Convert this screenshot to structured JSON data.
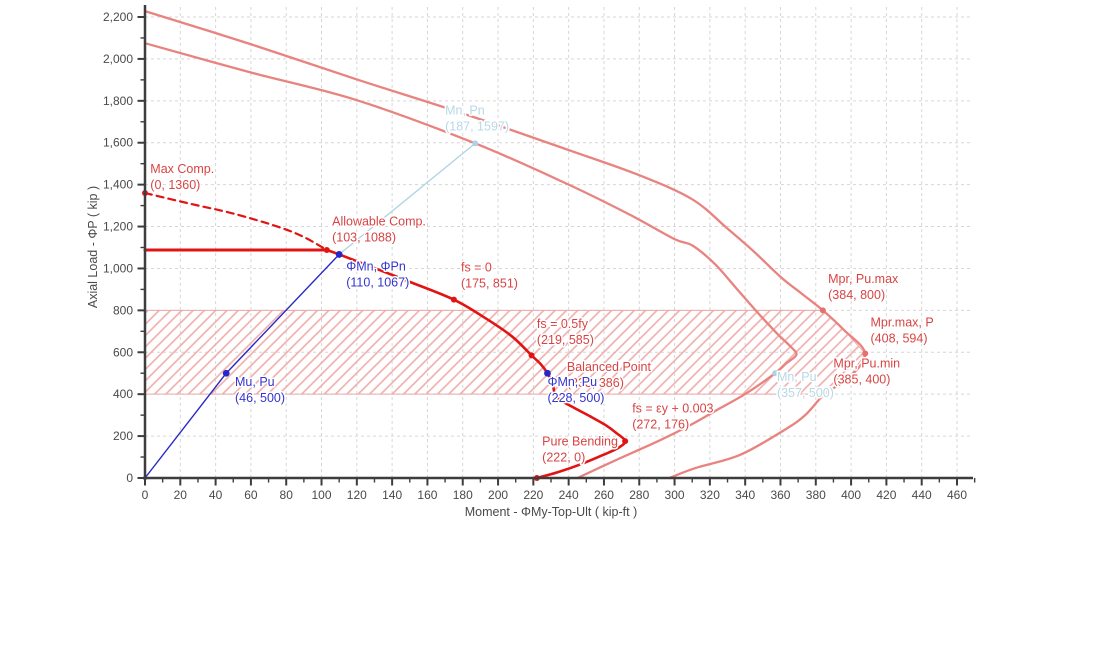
{
  "chart_data": {
    "type": "line",
    "title": "",
    "xlabel": "Moment - ΦMy-Top-Ult ( kip-ft )",
    "ylabel": "Axial Load - ΦP ( kip )",
    "xlim": [
      0,
      470
    ],
    "ylim": [
      0,
      2260
    ],
    "x_major_ticks": [
      0,
      20,
      40,
      60,
      80,
      100,
      120,
      140,
      160,
      180,
      200,
      220,
      240,
      260,
      280,
      300,
      320,
      340,
      360,
      380,
      400,
      420,
      440,
      460
    ],
    "x_minor_step": 10,
    "x_minor_max": 470,
    "y_major_ticks": [
      0,
      200,
      400,
      600,
      800,
      1000,
      1200,
      1400,
      1600,
      1800,
      2000,
      2200
    ],
    "y_minor_step": 100,
    "grid": true,
    "legend": null,
    "hatch_band": {
      "y_min": 400,
      "y_max": 800,
      "x_min": 0,
      "right_boundary": [
        [
          384,
          800
        ],
        [
          396,
          706
        ],
        [
          408,
          594
        ],
        [
          399,
          480
        ],
        [
          385,
          400
        ]
      ]
    },
    "series": [
      {
        "name": "probable-moment-curve-mpr",
        "color_key": "curve_light",
        "width": 2.3,
        "smooth": true,
        "points": [
          [
            0,
            2228
          ],
          [
            60,
            2070
          ],
          [
            120,
            1902
          ],
          [
            180,
            1740
          ],
          [
            240,
            1565
          ],
          [
            280,
            1445
          ],
          [
            310,
            1330
          ],
          [
            330,
            1190
          ],
          [
            345,
            1080
          ],
          [
            360,
            960
          ],
          [
            372,
            880
          ],
          [
            384,
            800
          ],
          [
            396,
            706
          ],
          [
            408,
            594
          ],
          [
            399,
            480
          ],
          [
            385,
            400
          ],
          [
            374,
            300
          ],
          [
            362,
            228
          ],
          [
            337,
            110
          ],
          [
            312,
            48
          ],
          [
            297,
            0
          ]
        ]
      },
      {
        "name": "nominal-moment-curve-mn",
        "color_key": "curve_light",
        "width": 2.3,
        "smooth": true,
        "points": [
          [
            0,
            2075
          ],
          [
            60,
            1935
          ],
          [
            120,
            1803
          ],
          [
            187,
            1597
          ],
          [
            240,
            1400
          ],
          [
            275,
            1255
          ],
          [
            300,
            1140
          ],
          [
            310,
            1110
          ],
          [
            323,
            1020
          ],
          [
            335,
            905
          ],
          [
            347,
            790
          ],
          [
            358,
            690
          ],
          [
            366,
            625
          ],
          [
            369,
            588
          ],
          [
            363,
            545
          ],
          [
            357,
            500
          ],
          [
            341,
            406
          ],
          [
            326,
            334
          ],
          [
            309,
            253
          ],
          [
            292,
            181
          ],
          [
            268,
            90
          ],
          [
            245,
            0
          ]
        ]
      },
      {
        "name": "design-cap-line",
        "color_key": "red",
        "width": 3,
        "smooth": false,
        "points": [
          [
            0,
            1088
          ],
          [
            103,
            1088
          ]
        ]
      },
      {
        "name": "design-uncapped-dashed",
        "color_key": "red",
        "width": 2.2,
        "dash": "7,5",
        "smooth": true,
        "points": [
          [
            0,
            1360
          ],
          [
            25,
            1310
          ],
          [
            50,
            1262
          ],
          [
            75,
            1200
          ],
          [
            90,
            1150
          ],
          [
            103,
            1088
          ]
        ]
      },
      {
        "name": "design-capacity-curve",
        "color_key": "red",
        "width": 2.6,
        "smooth": true,
        "points": [
          [
            103,
            1088
          ],
          [
            110,
            1067
          ],
          [
            130,
            1002
          ],
          [
            150,
            936
          ],
          [
            175,
            851
          ],
          [
            193,
            762
          ],
          [
            208,
            675
          ],
          [
            219,
            585
          ],
          [
            224,
            545
          ],
          [
            228,
            500
          ],
          [
            231,
            448
          ],
          [
            233,
            386
          ],
          [
            242,
            340
          ],
          [
            252,
            295
          ],
          [
            261,
            252
          ],
          [
            267,
            215
          ],
          [
            272,
            176
          ],
          [
            268,
            143
          ],
          [
            259,
            108
          ],
          [
            247,
            66
          ],
          [
            234,
            28
          ],
          [
            222,
            0
          ]
        ]
      },
      {
        "name": "load-path-line",
        "color_key": "blue",
        "width": 1.4,
        "smooth": false,
        "points": [
          [
            0,
            0
          ],
          [
            46,
            500
          ],
          [
            110,
            1067
          ]
        ]
      },
      {
        "name": "load-path-extension-line",
        "color_key": "lightblue",
        "width": 1.3,
        "smooth": false,
        "points": [
          [
            110,
            1067
          ],
          [
            187,
            1597
          ]
        ]
      }
    ],
    "markers": [
      {
        "label": "Max Comp.",
        "x": 0,
        "y": 1360,
        "color_key": "red"
      },
      {
        "label": "Allowable Comp.",
        "x": 103,
        "y": 1088,
        "color_key": "red"
      },
      {
        "label": "fs = 0",
        "x": 175,
        "y": 851,
        "color_key": "red"
      },
      {
        "label": "fs = 0.5fy",
        "x": 219,
        "y": 585,
        "color_key": "red"
      },
      {
        "label": "Balanced Point",
        "x": 233,
        "y": 386,
        "color_key": "red"
      },
      {
        "label": "fs = εy + 0.003",
        "x": 272,
        "y": 176,
        "color_key": "red"
      },
      {
        "label": "Pure Bending",
        "x": 222,
        "y": 0,
        "color_key": "red"
      },
      {
        "label": "Mpr, Pu.max",
        "x": 384,
        "y": 800,
        "color_key": "salmon"
      },
      {
        "label": "Mpr.max, P",
        "x": 408,
        "y": 594,
        "color_key": "salmon"
      },
      {
        "label": "Mpr, Pu.min",
        "x": 385,
        "y": 400,
        "color_key": "palepink"
      },
      {
        "label": "Mn, Pn",
        "x": 187,
        "y": 1597,
        "color_key": "lightblue"
      },
      {
        "label": "Mn, Pu",
        "x": 357,
        "y": 500,
        "color_key": "lightblue"
      },
      {
        "label": "ΦMn, ΦPn",
        "x": 110,
        "y": 1067,
        "color_key": "blue"
      },
      {
        "label": "Mu, Pu",
        "x": 46,
        "y": 500,
        "color_key": "blue"
      },
      {
        "label": "ΦMn, Pu",
        "x": 228,
        "y": 500,
        "color_key": "blue"
      }
    ],
    "annotations": [
      {
        "name": "label-max-comp",
        "lines": [
          "Max Comp.",
          "(0, 1360)"
        ],
        "x": 3,
        "y": 1455,
        "color_key": "label_red"
      },
      {
        "name": "label-allowable-comp",
        "lines": [
          "Allowable Comp.",
          "(103, 1088)"
        ],
        "x": 106,
        "y": 1205,
        "color_key": "label_red"
      },
      {
        "name": "label-phimn-phipn",
        "lines": [
          "ΦMn, ΦPn",
          "(110, 1067)"
        ],
        "x": 114,
        "y": 990,
        "color_key": "label_blue"
      },
      {
        "name": "label-fs-0",
        "lines": [
          "fs = 0",
          "(175, 851)"
        ],
        "x": 179,
        "y": 985,
        "color_key": "label_red"
      },
      {
        "name": "label-fs-05fy",
        "lines": [
          "fs = 0.5fy",
          "(219, 585)"
        ],
        "x": 222,
        "y": 715,
        "color_key": "label_red"
      },
      {
        "name": "label-balanced-point",
        "lines": [
          "Balanced Point",
          "(233, 386)"
        ],
        "x": 239,
        "y": 511,
        "color_key": "label_red"
      },
      {
        "name": "label-phimn-pu",
        "lines": [
          "ΦMn, Pu",
          "(228, 500)"
        ],
        "x": 228,
        "y": 438,
        "color_key": "label_blue"
      },
      {
        "name": "label-fs-ey",
        "lines": [
          "fs = εy + 0.003",
          "(272, 176)"
        ],
        "x": 276,
        "y": 312,
        "color_key": "label_red"
      },
      {
        "name": "label-pure-bending",
        "lines": [
          "Pure Bending",
          "(222, 0)"
        ],
        "x": 225,
        "y": 155,
        "color_key": "label_red"
      },
      {
        "name": "label-mu-pu",
        "lines": [
          "Mu, Pu",
          "(46, 500)"
        ],
        "x": 51,
        "y": 440,
        "color_key": "label_blue"
      },
      {
        "name": "label-mn-pn",
        "lines": [
          "Mn, Pn",
          "(187, 1597)"
        ],
        "x": 170,
        "y": 1735,
        "color_key": "label_lightblue"
      },
      {
        "name": "label-mn-pu",
        "lines": [
          "Mn, Pu",
          "(357, 500)"
        ],
        "x": 358,
        "y": 462,
        "color_key": "label_lightblue"
      },
      {
        "name": "label-mpr-pumax",
        "lines": [
          "Mpr, Pu.max",
          "(384, 800)"
        ],
        "x": 387,
        "y": 931,
        "color_key": "label_red"
      },
      {
        "name": "label-mprmax-p",
        "lines": [
          "Mpr.max, P",
          "(408, 594)"
        ],
        "x": 411,
        "y": 723,
        "color_key": "label_red"
      },
      {
        "name": "label-mpr-pumin",
        "lines": [
          "Mpr, Pu.min",
          "(385, 400)"
        ],
        "x": 390,
        "y": 528,
        "color_key": "label_red"
      }
    ],
    "colors": {
      "red": "#e11414",
      "blue": "#2727c8",
      "lightblue": "#aed3e4",
      "salmon": "#e4716e",
      "palepink": "#f2b9b7",
      "curve_light": "#e8837f",
      "label_red": "#d84444",
      "label_blue": "#3434cf",
      "label_lightblue": "#b7d8e6",
      "grid": "#d6d6d6",
      "axis": "#3d3d3d",
      "tick_text": "#4a4a4a",
      "hatch": "#efacaa",
      "hatch_border": "#eba8a6"
    }
  }
}
